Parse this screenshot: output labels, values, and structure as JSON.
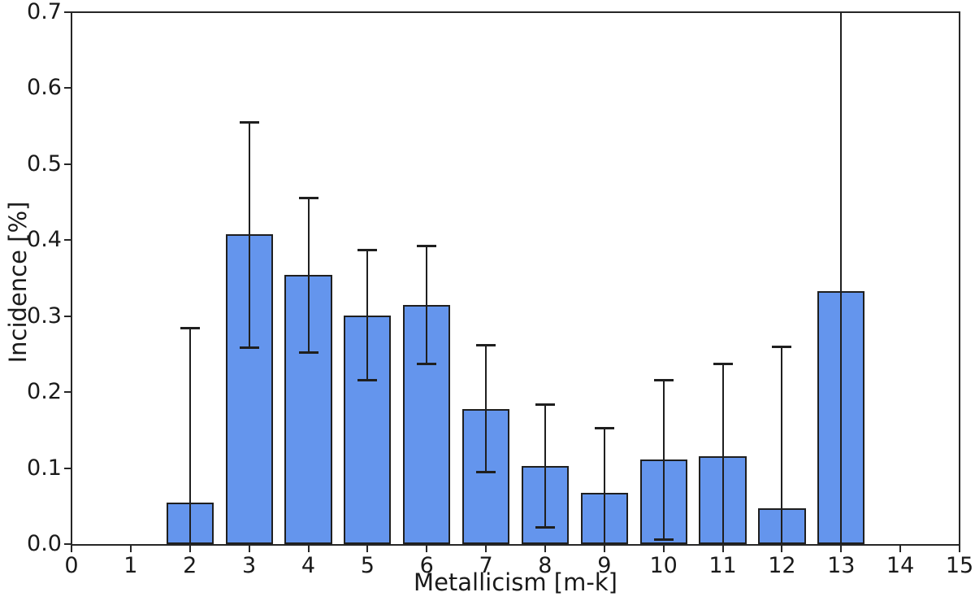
{
  "chart_data": {
    "type": "bar",
    "title": "",
    "xlabel": "Metallicism [m-k]",
    "ylabel": "Incidence [%]",
    "xlim": [
      0,
      15
    ],
    "ylim": [
      0.0,
      0.7
    ],
    "grid": false,
    "legend": false,
    "bar_width": 0.8,
    "colors": {
      "bar_fill": "#6495ED",
      "bar_edge": "#1f1f1f",
      "error_bar": "#1f1f1f",
      "axis": "#262626",
      "text": "#1a1a1a",
      "background": "#ffffff"
    },
    "x_ticks": [
      {
        "value": 0,
        "label": "0"
      },
      {
        "value": 1,
        "label": "1"
      },
      {
        "value": 2,
        "label": "2"
      },
      {
        "value": 3,
        "label": "3"
      },
      {
        "value": 4,
        "label": "4"
      },
      {
        "value": 5,
        "label": "5"
      },
      {
        "value": 6,
        "label": "6"
      },
      {
        "value": 7,
        "label": "7"
      },
      {
        "value": 8,
        "label": "8"
      },
      {
        "value": 9,
        "label": "9"
      },
      {
        "value": 10,
        "label": "10"
      },
      {
        "value": 11,
        "label": "11"
      },
      {
        "value": 12,
        "label": "12"
      },
      {
        "value": 13,
        "label": "13"
      },
      {
        "value": 14,
        "label": "14"
      },
      {
        "value": 15,
        "label": "15"
      }
    ],
    "y_ticks": [
      {
        "value": 0.0,
        "label": "0.0"
      },
      {
        "value": 0.1,
        "label": "0.1"
      },
      {
        "value": 0.2,
        "label": "0.2"
      },
      {
        "value": 0.3,
        "label": "0.3"
      },
      {
        "value": 0.4,
        "label": "0.4"
      },
      {
        "value": 0.5,
        "label": "0.5"
      },
      {
        "value": 0.6,
        "label": "0.6"
      },
      {
        "value": 0.7,
        "label": "0.7"
      }
    ],
    "points": [
      {
        "x": 2,
        "y": 0.055,
        "err_lower": 0.0,
        "err_upper": 0.285
      },
      {
        "x": 3,
        "y": 0.408,
        "err_lower": 0.259,
        "err_upper": 0.556
      },
      {
        "x": 4,
        "y": 0.354,
        "err_lower": 0.253,
        "err_upper": 0.456
      },
      {
        "x": 5,
        "y": 0.301,
        "err_lower": 0.216,
        "err_upper": 0.387
      },
      {
        "x": 6,
        "y": 0.315,
        "err_lower": 0.238,
        "err_upper": 0.393
      },
      {
        "x": 7,
        "y": 0.178,
        "err_lower": 0.095,
        "err_upper": 0.262
      },
      {
        "x": 8,
        "y": 0.103,
        "err_lower": 0.022,
        "err_upper": 0.184
      },
      {
        "x": 9,
        "y": 0.068,
        "err_lower": 0.0,
        "err_upper": 0.153
      },
      {
        "x": 10,
        "y": 0.111,
        "err_lower": 0.006,
        "err_upper": 0.216
      },
      {
        "x": 11,
        "y": 0.116,
        "err_lower": 0.0,
        "err_upper": 0.238
      },
      {
        "x": 12,
        "y": 0.047,
        "err_lower": 0.0,
        "err_upper": 0.26
      },
      {
        "x": 13,
        "y": 0.333,
        "err_lower": 0.0,
        "err_upper": 0.7
      }
    ]
  }
}
